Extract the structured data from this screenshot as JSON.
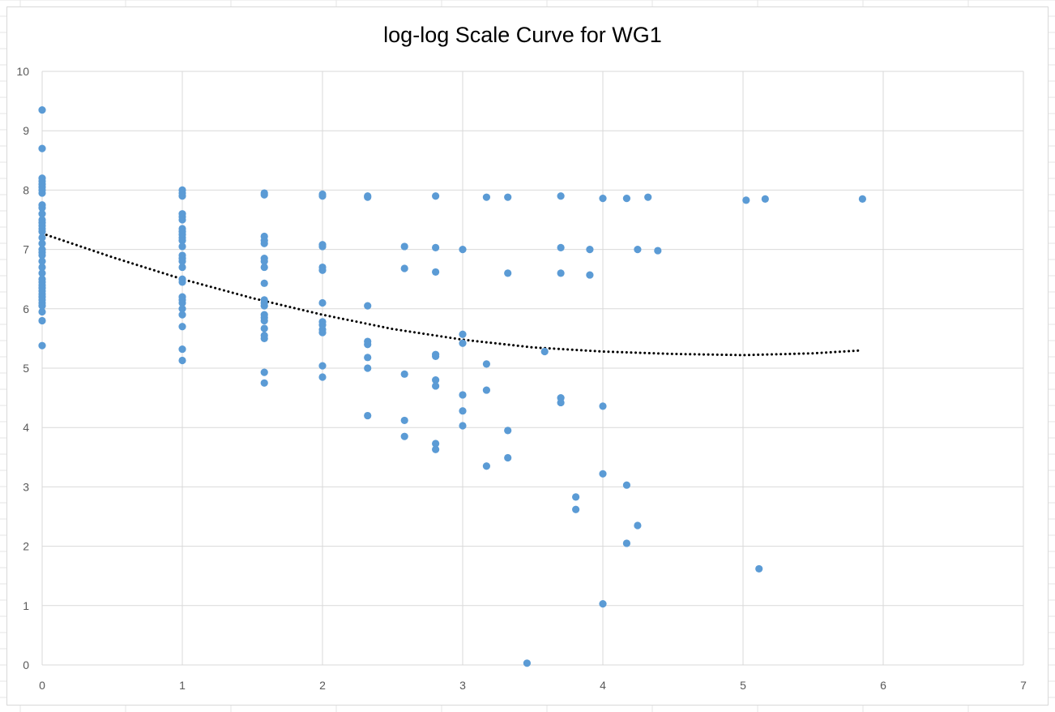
{
  "colors": {
    "marker": "#5b9bd5",
    "trendline": "#000000",
    "gridline": "#d9d9d9",
    "tick_label": "#595959",
    "sheet_grid": "#e6e6e6"
  },
  "chart_data": {
    "type": "scatter",
    "title": "log-log Scale Curve for WG1",
    "xlabel": "",
    "ylabel": "",
    "xlim": [
      0,
      7
    ],
    "ylim": [
      0,
      10
    ],
    "x_ticks": [
      "0",
      "1",
      "2",
      "3",
      "4",
      "5",
      "6",
      "7"
    ],
    "y_ticks": [
      "0",
      "1",
      "2",
      "3",
      "4",
      "5",
      "6",
      "7",
      "8",
      "9",
      "10"
    ],
    "grid": true,
    "legend": "none",
    "series": [
      {
        "points": [
          [
            0,
            9.35
          ],
          [
            0,
            8.7
          ],
          [
            0,
            8.2
          ],
          [
            0,
            8.15
          ],
          [
            0,
            8.1
          ],
          [
            0,
            8.05
          ],
          [
            0,
            8.0
          ],
          [
            0,
            7.95
          ],
          [
            0,
            7.75
          ],
          [
            0,
            7.7
          ],
          [
            0,
            7.6
          ],
          [
            0,
            7.5
          ],
          [
            0,
            7.45
          ],
          [
            0,
            7.4
          ],
          [
            0,
            7.35
          ],
          [
            0,
            7.3
          ],
          [
            0,
            7.2
          ],
          [
            0,
            7.1
          ],
          [
            0,
            7.0
          ],
          [
            0,
            6.95
          ],
          [
            0,
            6.9
          ],
          [
            0,
            6.8
          ],
          [
            0,
            6.7
          ],
          [
            0,
            6.6
          ],
          [
            0,
            6.5
          ],
          [
            0,
            6.45
          ],
          [
            0,
            6.4
          ],
          [
            0,
            6.35
          ],
          [
            0,
            6.3
          ],
          [
            0,
            6.25
          ],
          [
            0,
            6.2
          ],
          [
            0,
            6.15
          ],
          [
            0,
            6.1
          ],
          [
            0,
            6.05
          ],
          [
            0,
            5.95
          ],
          [
            0,
            5.8
          ],
          [
            0,
            5.38
          ],
          [
            1,
            8.0
          ],
          [
            1,
            7.95
          ],
          [
            1,
            7.9
          ],
          [
            1,
            7.6
          ],
          [
            1,
            7.55
          ],
          [
            1,
            7.5
          ],
          [
            1,
            7.35
          ],
          [
            1,
            7.3
          ],
          [
            1,
            7.25
          ],
          [
            1,
            7.2
          ],
          [
            1,
            7.15
          ],
          [
            1,
            7.05
          ],
          [
            1,
            6.9
          ],
          [
            1,
            6.85
          ],
          [
            1,
            6.8
          ],
          [
            1,
            6.7
          ],
          [
            1,
            6.5
          ],
          [
            1,
            6.45
          ],
          [
            1,
            6.2
          ],
          [
            1,
            6.15
          ],
          [
            1,
            6.1
          ],
          [
            1,
            6.0
          ],
          [
            1,
            5.9
          ],
          [
            1,
            5.7
          ],
          [
            1,
            5.32
          ],
          [
            1,
            5.13
          ],
          [
            1.585,
            7.95
          ],
          [
            1.585,
            7.92
          ],
          [
            1.585,
            7.22
          ],
          [
            1.585,
            7.15
          ],
          [
            1.585,
            7.1
          ],
          [
            1.585,
            6.85
          ],
          [
            1.585,
            6.8
          ],
          [
            1.585,
            6.7
          ],
          [
            1.585,
            6.43
          ],
          [
            1.585,
            6.15
          ],
          [
            1.585,
            6.1
          ],
          [
            1.585,
            6.05
          ],
          [
            1.585,
            5.9
          ],
          [
            1.585,
            5.85
          ],
          [
            1.585,
            5.8
          ],
          [
            1.585,
            5.67
          ],
          [
            1.585,
            5.55
          ],
          [
            1.585,
            5.5
          ],
          [
            1.585,
            4.93
          ],
          [
            1.585,
            4.75
          ],
          [
            2,
            7.93
          ],
          [
            2,
            7.9
          ],
          [
            2,
            7.08
          ],
          [
            2,
            7.05
          ],
          [
            2,
            6.7
          ],
          [
            2,
            6.65
          ],
          [
            2,
            6.1
          ],
          [
            2,
            5.78
          ],
          [
            2,
            5.73
          ],
          [
            2,
            5.65
          ],
          [
            2,
            5.6
          ],
          [
            2,
            5.04
          ],
          [
            2,
            4.85
          ],
          [
            2.322,
            7.9
          ],
          [
            2.322,
            7.88
          ],
          [
            2.322,
            6.05
          ],
          [
            2.322,
            5.45
          ],
          [
            2.322,
            5.4
          ],
          [
            2.322,
            5.18
          ],
          [
            2.322,
            5.0
          ],
          [
            2.322,
            4.2
          ],
          [
            2.585,
            7.05
          ],
          [
            2.585,
            6.68
          ],
          [
            2.585,
            4.9
          ],
          [
            2.585,
            4.12
          ],
          [
            2.585,
            3.85
          ],
          [
            2.807,
            7.9
          ],
          [
            2.807,
            7.03
          ],
          [
            2.807,
            6.62
          ],
          [
            2.807,
            5.23
          ],
          [
            2.807,
            5.2
          ],
          [
            2.807,
            4.8
          ],
          [
            2.807,
            4.7
          ],
          [
            2.807,
            3.73
          ],
          [
            2.807,
            3.63
          ],
          [
            3,
            7.0
          ],
          [
            3,
            5.57
          ],
          [
            3,
            5.42
          ],
          [
            3,
            4.55
          ],
          [
            3,
            4.28
          ],
          [
            3,
            4.03
          ],
          [
            3.17,
            7.88
          ],
          [
            3.17,
            5.07
          ],
          [
            3.17,
            4.63
          ],
          [
            3.17,
            3.35
          ],
          [
            3.322,
            7.88
          ],
          [
            3.322,
            6.6
          ],
          [
            3.322,
            3.95
          ],
          [
            3.322,
            3.49
          ],
          [
            3.459,
            0.03
          ],
          [
            3.585,
            5.28
          ],
          [
            3.7,
            7.9
          ],
          [
            3.7,
            7.03
          ],
          [
            3.7,
            6.6
          ],
          [
            3.7,
            4.5
          ],
          [
            3.7,
            4.42
          ],
          [
            3.807,
            2.83
          ],
          [
            3.807,
            2.62
          ],
          [
            3.907,
            7.0
          ],
          [
            3.907,
            6.57
          ],
          [
            4,
            7.86
          ],
          [
            4,
            4.36
          ],
          [
            4,
            3.22
          ],
          [
            4,
            1.03
          ],
          [
            4.17,
            7.86
          ],
          [
            4.17,
            3.03
          ],
          [
            4.17,
            2.05
          ],
          [
            4.248,
            7.0
          ],
          [
            4.248,
            2.35
          ],
          [
            4.322,
            7.88
          ],
          [
            4.392,
            6.98
          ],
          [
            5.022,
            7.83
          ],
          [
            5.114,
            1.62
          ],
          [
            5.158,
            7.85
          ],
          [
            5.852,
            7.85
          ]
        ]
      }
    ],
    "trendline": {
      "style": "dotted",
      "x": [
        0,
        0.5,
        1,
        1.5,
        2,
        2.5,
        3,
        3.5,
        4,
        4.5,
        5,
        5.5,
        5.85
      ],
      "y": [
        7.27,
        6.87,
        6.5,
        6.18,
        5.9,
        5.66,
        5.48,
        5.35,
        5.28,
        5.24,
        5.22,
        5.25,
        5.3
      ]
    }
  }
}
